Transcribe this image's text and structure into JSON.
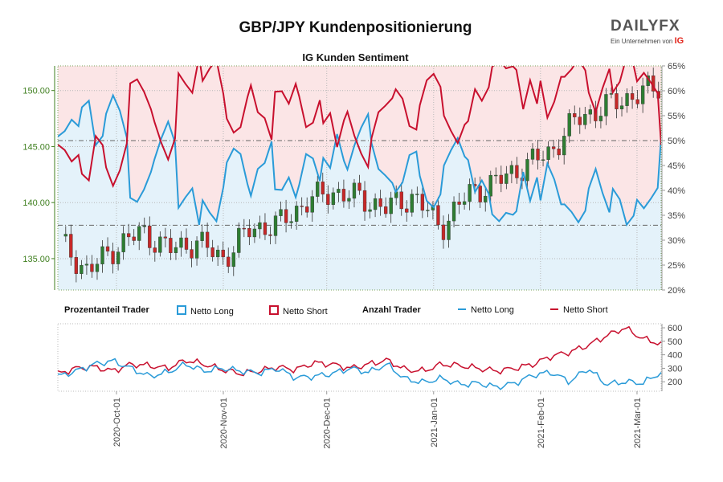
{
  "header": {
    "title": "GBP/JPY Kundenpositionierung",
    "subtitle": "IG Kunden Sentiment"
  },
  "logo": {
    "brand_left": "DAILY",
    "brand_right": "FX",
    "tagline": "Ein Unternehmen von",
    "tagline_brand": "IG"
  },
  "legend": {
    "group1_label": "Prozentanteil Trader",
    "group1_long": "Netto Long",
    "group1_short": "Netto Short",
    "group2_label": "Anzahl Trader",
    "group2_long": "Netto Long",
    "group2_short": "Netto Short"
  },
  "colors": {
    "long": "#2a9bd8",
    "short": "#c8102e",
    "long_fill": "#e4f2fa",
    "short_fill": "#fbe5e6",
    "candle_up": "#2e7d32",
    "candle_down": "#c62828",
    "price_axis": "#3f7f1f"
  },
  "chart_data": [
    {
      "type": "line",
      "name": "price-and-sentiment",
      "x_ticks": [
        "2020-Oct-01",
        "2020-Nov-01",
        "2020-Dec-01",
        "2021-Jan-01",
        "2021-Feb-01",
        "2021-Mar-01"
      ],
      "x_range": [
        "2020-Sep-14",
        "2021-Mar-08"
      ],
      "y_left_ticks": [
        "135.00",
        "140.00",
        "145.00",
        "150.00"
      ],
      "y_left_range": [
        132.2,
        152.2
      ],
      "y_right_ticks": [
        "20%",
        "25%",
        "30%",
        "35%",
        "40%",
        "45%",
        "50%",
        "55%",
        "60%",
        "65%"
      ],
      "y_right_range": [
        20,
        65
      ],
      "reference_lines": [
        50,
        33
      ],
      "price_weekly_close": [
        136.5,
        133.8,
        136.0,
        137.4,
        135.8,
        136.5,
        135.0,
        137.7,
        138.0,
        140.0,
        141.0,
        140.4,
        139.5,
        140.6,
        137.8,
        140.8,
        141.8,
        143.2,
        144.5,
        147.5,
        148.5,
        149.5,
        150.3
      ],
      "series": [
        {
          "name": "Netto Long",
          "unit": "%",
          "x_offset_days": [
            0,
            2,
            4,
            6,
            7,
            9,
            11,
            13,
            14,
            16,
            18,
            20,
            21,
            23,
            25,
            27,
            28,
            30,
            32,
            34,
            35,
            37,
            39,
            41,
            42,
            44,
            46,
            48,
            49,
            51,
            53,
            55,
            56,
            58,
            60,
            62,
            63,
            65,
            67,
            69,
            70,
            72,
            74,
            76,
            77,
            79,
            81,
            83,
            84,
            86,
            88,
            90,
            91,
            93,
            95,
            97,
            98,
            100,
            102,
            104,
            105,
            107,
            109,
            111,
            112,
            114,
            116,
            118,
            119,
            121,
            123,
            125,
            126,
            128,
            130,
            132,
            133,
            135,
            137,
            139,
            140,
            142,
            144,
            146,
            147,
            149,
            151,
            153,
            154,
            156,
            158,
            160,
            161,
            163,
            165,
            167,
            168,
            170,
            172,
            174,
            175
          ],
          "values": [
            50.8,
            51.9,
            54.2,
            52.9,
            56.7,
            58.0,
            49.1,
            50.9,
            55.4,
            59.1,
            56.0,
            50.6,
            38.5,
            37.7,
            40.2,
            43.7,
            46.2,
            50.4,
            53.8,
            49.6,
            36.5,
            38.6,
            40.4,
            33.1,
            38.0,
            35.6,
            33.8,
            40.6,
            45.6,
            48.4,
            47.3,
            41.3,
            38.9,
            44.3,
            45.5,
            49.8,
            40.2,
            40.1,
            42.6,
            38.6,
            41.1,
            47.3,
            46.4,
            41.9,
            46.5,
            44.5,
            51.3,
            45.9,
            44.2,
            49.0,
            52.6,
            55.3,
            49.5,
            44.3,
            43.0,
            41.5,
            39.7,
            41.6,
            47.1,
            47.8,
            42.9,
            37.9,
            36.6,
            39.2,
            45.0,
            48.0,
            50.5,
            46.8,
            46.1,
            39.7,
            42.0,
            39.3,
            35.2,
            33.8,
            35.5,
            35.1,
            35.8,
            43.7,
            37.9,
            42.6,
            38.0,
            45.4,
            42.2,
            37.2,
            37.2,
            35.7,
            33.6,
            35.9,
            40.4,
            44.3,
            39.5,
            35.6,
            40.3,
            38.2,
            33.1,
            34.9,
            38.1,
            36.4,
            38.3,
            40.5,
            50.8
          ]
        },
        {
          "name": "Netto Short",
          "unit": "%",
          "x_offset_days": [
            0,
            2,
            4,
            6,
            7,
            9,
            11,
            13,
            14,
            16,
            18,
            20,
            21,
            23,
            25,
            27,
            28,
            30,
            32,
            34,
            35,
            37,
            39,
            41,
            42,
            44,
            46,
            48,
            49,
            51,
            53,
            55,
            56,
            58,
            60,
            62,
            63,
            65,
            67,
            69,
            70,
            72,
            74,
            76,
            77,
            79,
            81,
            83,
            84,
            86,
            88,
            90,
            91,
            93,
            95,
            97,
            98,
            100,
            102,
            104,
            105,
            107,
            109,
            111,
            112,
            114,
            116,
            118,
            119,
            121,
            123,
            125,
            126,
            128,
            130,
            132,
            133,
            135,
            137,
            139,
            140,
            142,
            144,
            146,
            147,
            149,
            151,
            153,
            154,
            156,
            158,
            160,
            161,
            163,
            165,
            167,
            168,
            170,
            172,
            174,
            175
          ],
          "values": [
            49.2,
            48.1,
            45.8,
            47.1,
            43.3,
            42.0,
            50.9,
            49.1,
            44.6,
            40.9,
            44.0,
            49.4,
            61.5,
            62.3,
            59.8,
            56.3,
            53.8,
            49.6,
            46.2,
            50.4,
            63.5,
            61.4,
            59.6,
            66.9,
            62.0,
            64.4,
            66.2,
            59.4,
            54.4,
            51.6,
            52.7,
            58.7,
            61.1,
            55.7,
            54.5,
            50.2,
            59.8,
            59.9,
            57.4,
            61.4,
            58.9,
            52.7,
            53.6,
            58.1,
            53.5,
            55.5,
            48.7,
            54.1,
            55.8,
            51.0,
            47.4,
            44.7,
            50.5,
            55.7,
            57.0,
            58.5,
            60.3,
            58.4,
            52.9,
            52.2,
            57.1,
            62.1,
            63.4,
            60.8,
            55.0,
            52.0,
            49.5,
            53.2,
            53.9,
            60.3,
            58.0,
            60.7,
            64.8,
            66.2,
            64.5,
            64.9,
            64.2,
            56.3,
            62.1,
            57.4,
            62.0,
            54.6,
            57.8,
            62.8,
            62.8,
            64.3,
            66.4,
            64.1,
            59.6,
            55.7,
            60.5,
            64.4,
            59.7,
            61.8,
            66.9,
            65.1,
            61.9,
            63.6,
            61.7,
            59.5,
            49.2
          ]
        }
      ]
    },
    {
      "type": "line",
      "name": "trader-count",
      "x_ticks": [
        "2020-Oct-01",
        "2020-Nov-01",
        "2020-Dec-01",
        "2021-Jan-01",
        "2021-Feb-01",
        "2021-Mar-01"
      ],
      "y_ticks": [
        "200",
        "300",
        "400",
        "500",
        "600"
      ],
      "y_range": [
        130,
        630
      ],
      "series": [
        {
          "name": "Netto Long",
          "unit": "traders",
          "weekly": [
            240,
            280,
            330,
            355,
            300,
            240,
            270,
            330,
            280,
            300,
            280,
            265,
            300,
            230,
            240,
            260,
            300,
            270,
            330,
            220,
            195,
            225,
            180,
            190,
            160,
            190,
            250,
            270,
            200,
            300,
            180,
            200,
            190,
            270
          ]
        },
        {
          "name": "Netto Short",
          "unit": "traders",
          "weekly": [
            260,
            300,
            310,
            280,
            330,
            320,
            300,
            360,
            330,
            290,
            260,
            280,
            310,
            290,
            340,
            330,
            300,
            330,
            360,
            290,
            280,
            330,
            320,
            300,
            280,
            300,
            330,
            390,
            420,
            470,
            540,
            600,
            520,
            480
          ]
        }
      ]
    }
  ]
}
